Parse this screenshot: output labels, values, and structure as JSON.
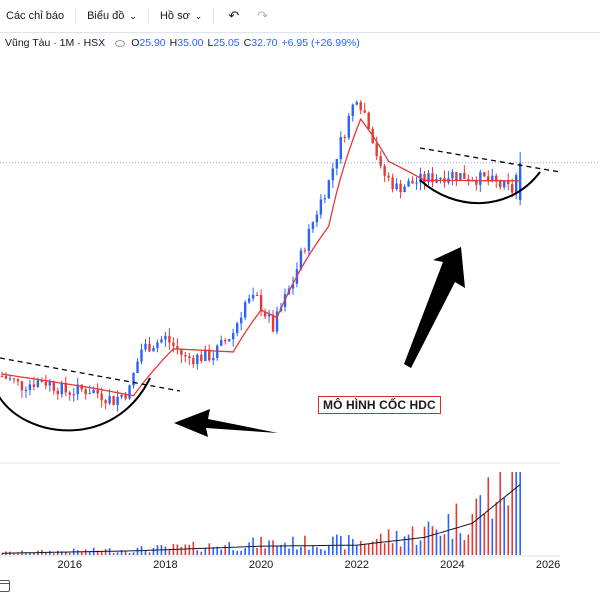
{
  "toolbar": {
    "indicators_label": "Các chỉ báo",
    "chart_label": "Biểu đồ",
    "profile_label": "Hồ sơ"
  },
  "legend": {
    "symbol": "Vũng Tàu · 1M · HSX",
    "open_label": "O",
    "open": "25.90",
    "high_label": "H",
    "high": "35.00",
    "low_label": "L",
    "low": "25.05",
    "close_label": "C",
    "close": "32.70",
    "change": "+6.95 (+26.99%)"
  },
  "annotation": "MÔ HÌNH CỐC HDC",
  "colors": {
    "up": "#2962ff",
    "down": "#e53935",
    "ma": "#e53935",
    "volume_ma": "#131722",
    "annotation_border": "#d32f2f"
  },
  "chart_data": {
    "type": "candlestick",
    "interval": "1M",
    "x_axis_ticks": [
      "2016",
      "2018",
      "2020",
      "2022",
      "2024",
      "2026"
    ],
    "x_axis_range": [
      "2014-08",
      "2026-06"
    ],
    "y_scale": "log",
    "series": [
      {
        "name": "price",
        "anchors": [
          {
            "x": "2014-08",
            "close": 8.6
          },
          {
            "x": "2015-01",
            "close": 8.1
          },
          {
            "x": "2015-06",
            "close": 8.4
          },
          {
            "x": "2015-12",
            "close": 7.8
          },
          {
            "x": "2016-06",
            "close": 7.9
          },
          {
            "x": "2016-12",
            "close": 7.4
          },
          {
            "x": "2017-04",
            "close": 7.9
          },
          {
            "x": "2017-07",
            "close": 10.2
          },
          {
            "x": "2018-01",
            "close": 10.9
          },
          {
            "x": "2018-06",
            "close": 9.6
          },
          {
            "x": "2019-01",
            "close": 9.8
          },
          {
            "x": "2019-06",
            "close": 11.3
          },
          {
            "x": "2019-09",
            "close": 13.6
          },
          {
            "x": "2019-12",
            "close": 13.9
          },
          {
            "x": "2020-04",
            "close": 11.6
          },
          {
            "x": "2020-09",
            "close": 15.5
          },
          {
            "x": "2021-01",
            "close": 21.0
          },
          {
            "x": "2021-06",
            "close": 29.0
          },
          {
            "x": "2021-10",
            "close": 40.0
          },
          {
            "x": "2022-01",
            "close": 50.0
          },
          {
            "x": "2022-04",
            "close": 42.0
          },
          {
            "x": "2022-07",
            "close": 31.0
          },
          {
            "x": "2022-11",
            "close": 28.0
          },
          {
            "x": "2023-06",
            "close": 29.5
          },
          {
            "x": "2024-01",
            "close": 30.5
          },
          {
            "x": "2024-09",
            "close": 29.5
          },
          {
            "x": "2025-04",
            "close": 27.5
          },
          {
            "x": "2025-06",
            "close": 32.7
          }
        ]
      },
      {
        "name": "moving-average",
        "anchors": [
          {
            "x": "2014-08",
            "value": 8.7
          },
          {
            "x": "2016-06",
            "value": 8.0
          },
          {
            "x": "2017-05",
            "value": 7.6
          },
          {
            "x": "2018-03",
            "value": 10.2
          },
          {
            "x": "2019-06",
            "value": 10.0
          },
          {
            "x": "2020-01",
            "value": 13.0
          },
          {
            "x": "2020-05",
            "value": 12.4
          },
          {
            "x": "2021-06",
            "value": 22.0
          },
          {
            "x": "2022-02",
            "value": 43.0
          },
          {
            "x": "2022-09",
            "value": 33.0
          },
          {
            "x": "2023-06",
            "value": 29.3
          },
          {
            "x": "2025-06",
            "value": 29.2
          }
        ]
      },
      {
        "name": "volume",
        "anchors": [
          {
            "x": "2014-08",
            "value": 0.5
          },
          {
            "x": "2017-06",
            "value": 1.2
          },
          {
            "x": "2020-01",
            "value": 2.5
          },
          {
            "x": "2022-01",
            "value": 2.8
          },
          {
            "x": "2023-06",
            "value": 5.0
          },
          {
            "x": "2024-06",
            "value": 9.0
          },
          {
            "x": "2025-06",
            "value": 20.0
          }
        ]
      }
    ],
    "price_line": 32.7,
    "annotations": [
      "cup-curve-2015-2017",
      "cup-curve-2023-2025",
      "downtrend-line-2015-2017",
      "downtrend-line-2023-2025",
      "arrow-left",
      "arrow-up"
    ]
  }
}
